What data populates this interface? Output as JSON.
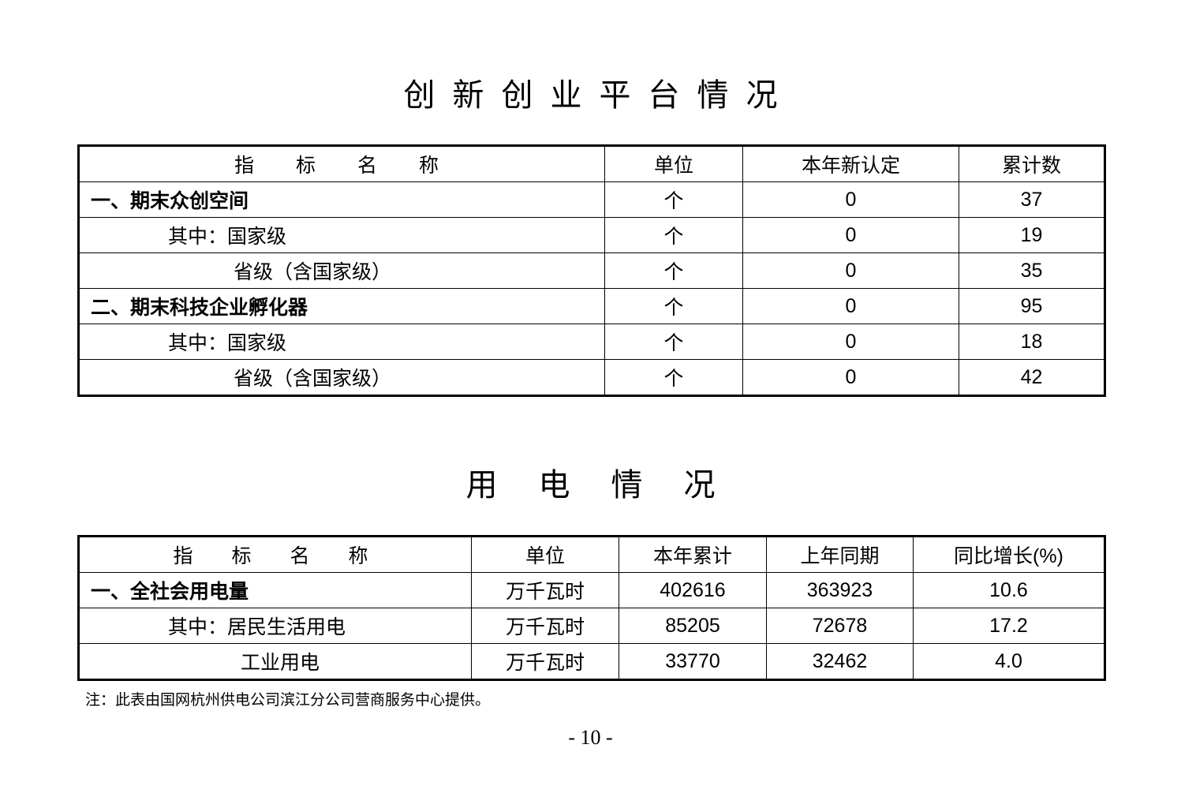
{
  "platform": {
    "title": "创新创业平台情况",
    "headers": [
      "指　标　名　称",
      "单位",
      "本年新认定",
      "累计数"
    ],
    "rows": [
      {
        "name": "一、期末众创空间",
        "level": 0,
        "unit": "个",
        "new": "0",
        "total": "37"
      },
      {
        "name": "其中：国家级",
        "level": 1,
        "unit": "个",
        "new": "0",
        "total": "19"
      },
      {
        "name": "省级（含国家级）",
        "level": 2,
        "unit": "个",
        "new": "0",
        "total": "35"
      },
      {
        "name": "二、期末科技企业孵化器",
        "level": 0,
        "unit": "个",
        "new": "0",
        "total": "95"
      },
      {
        "name": "其中：国家级",
        "level": 1,
        "unit": "个",
        "new": "0",
        "total": "18"
      },
      {
        "name": "省级（含国家级）",
        "level": 2,
        "unit": "个",
        "new": "0",
        "total": "42"
      }
    ]
  },
  "electricity": {
    "title": "用电情况",
    "headers": [
      "指　标　名　称",
      "单位",
      "本年累计",
      "上年同期",
      "同比增长(%)"
    ],
    "rows": [
      {
        "name": "一、全社会用电量",
        "level": 0,
        "unit": "万千瓦时",
        "current": "402616",
        "previous": "363923",
        "growth": "10.6"
      },
      {
        "name": "其中：居民生活用电",
        "level": 1,
        "unit": "万千瓦时",
        "current": "85205",
        "previous": "72678",
        "growth": "17.2"
      },
      {
        "name": "工业用电",
        "level": 3,
        "unit": "万千瓦时",
        "current": "33770",
        "previous": "32462",
        "growth": "4.0"
      }
    ]
  },
  "note": "注：此表由国网杭州供电公司滨江分公司营商服务中心提供。",
  "page_number": "- 10 -"
}
